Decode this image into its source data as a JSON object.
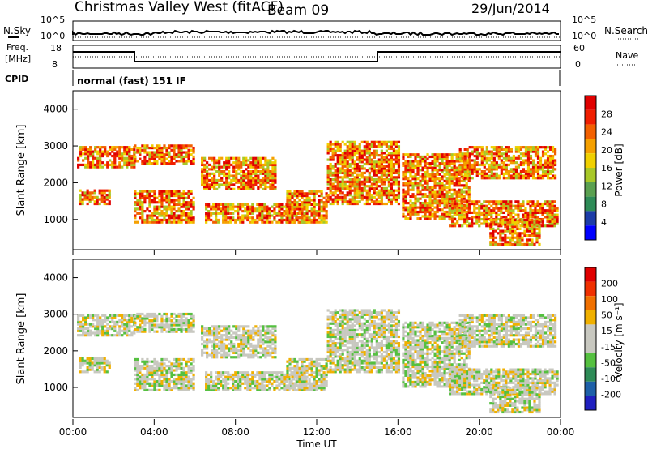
{
  "header": {
    "title": "Christmas Valley West (fitACF)",
    "beam": "Beam 09",
    "date": "29/Jun/2014"
  },
  "ancillary": {
    "nsky_label": "N.Sky",
    "nsearch_label": "N.Search",
    "noise_ticks": [
      "10^5",
      "10^0"
    ],
    "freq_label": "Freq.",
    "freq_unit": "[MHz]",
    "freq_ticks": [
      "18",
      "8"
    ],
    "nave_label": "Nave",
    "nave_ticks": [
      "60",
      "0"
    ],
    "cpid_label": "CPID",
    "cpid_value": "normal (fast) 151 IF"
  },
  "chart_data": [
    {
      "type": "heatmap",
      "panel": "power",
      "ylabel": "Slant Range [km]",
      "yticks": [
        1000,
        2000,
        3000,
        4000
      ],
      "ylim": [
        180,
        4500
      ],
      "colorbar_label": "Power [dB]",
      "colorbar_ticks": [
        "28",
        "24",
        "20",
        "16",
        "12",
        "8",
        "4"
      ],
      "colorbar_colors": [
        "#0000ff",
        "#1c3ca8",
        "#2e8b57",
        "#5aa050",
        "#a8c828",
        "#f0d000",
        "#f5a000",
        "#f26000",
        "#f01e00",
        "#e00000"
      ]
    },
    {
      "type": "heatmap",
      "panel": "velocity",
      "ylabel": "Slant Range [km]",
      "yticks": [
        1000,
        2000,
        3000,
        4000
      ],
      "ylim": [
        180,
        4500
      ],
      "colorbar_label": "Velocity [m s⁻¹]",
      "colorbar_ticks": [
        "200",
        "100",
        "50",
        "15",
        "-15",
        "-50",
        "-100",
        "-200"
      ],
      "colorbar_colors": [
        "#2020c0",
        "#1e60a8",
        "#2e8b57",
        "#55c040",
        "#c8c8c0",
        "#c8c8c0",
        "#f0b000",
        "#f07000",
        "#f03000",
        "#e00000"
      ]
    }
  ],
  "xaxis": {
    "label": "Time UT",
    "ticks": [
      "00:00",
      "04:00",
      "08:00",
      "12:00",
      "16:00",
      "20:00",
      "00:00"
    ]
  }
}
